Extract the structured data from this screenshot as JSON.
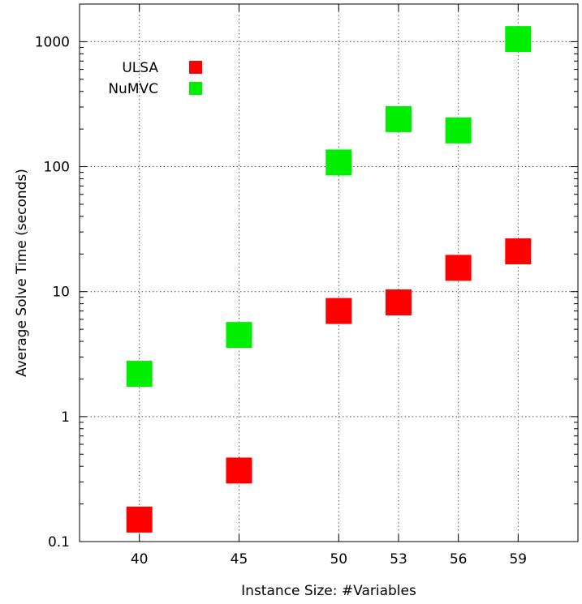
{
  "chart_data": {
    "type": "scatter",
    "title": "",
    "xlabel": "Instance Size: #Variables",
    "ylabel": "Average Solve Time (seconds)",
    "x_scale": "linear",
    "y_scale": "log",
    "xlim": [
      37,
      62
    ],
    "ylim": [
      0.1,
      2000
    ],
    "x_ticks": [
      40,
      45,
      50,
      53,
      56,
      59
    ],
    "x_tick_labels": [
      "40",
      "45",
      "50",
      "53",
      "56",
      "59"
    ],
    "y_ticks": [
      0.1,
      1,
      10,
      100,
      1000
    ],
    "y_tick_labels": [
      "0.1",
      "1",
      "10",
      "100",
      "1000"
    ],
    "grid": true,
    "legend_position": "top-left",
    "series": [
      {
        "name": "ULSA",
        "color": "#ff0000",
        "marker": "square",
        "x": [
          40,
          45,
          50,
          53,
          56,
          59
        ],
        "y": [
          0.15,
          0.37,
          7,
          8.2,
          15.5,
          21
        ]
      },
      {
        "name": "NuMVC",
        "color": "#00ee00",
        "marker": "square",
        "x": [
          40,
          45,
          50,
          53,
          56,
          59
        ],
        "y": [
          2.2,
          4.5,
          108,
          240,
          195,
          1050
        ]
      }
    ]
  }
}
